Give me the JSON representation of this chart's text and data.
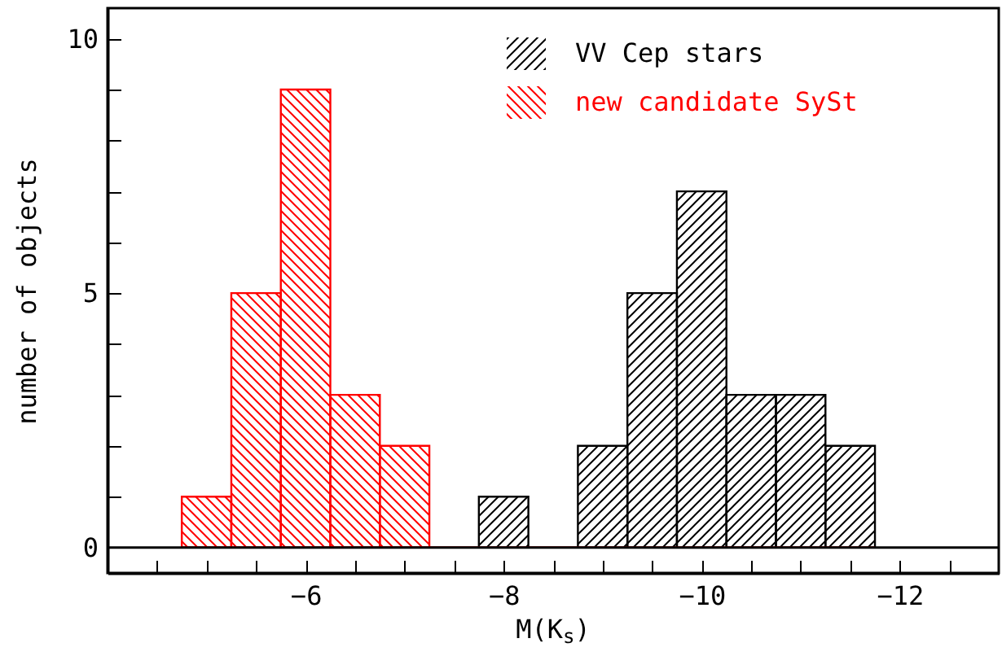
{
  "chart_data": {
    "type": "histogram",
    "xlabel": "M(K$_{s}$)",
    "ylabel": "number of objects",
    "bins": [
      -4.75,
      -5.25,
      -5.75,
      -6.25,
      -6.75,
      -7.25,
      -7.75,
      -8.25,
      -8.75,
      -9.25,
      -9.75,
      -10.25,
      -10.75,
      -11.25,
      -11.75
    ],
    "series": [
      {
        "name": "VV Cep stars",
        "color": "#000000",
        "values": [
          0,
          0,
          0,
          0,
          0,
          0,
          1,
          0,
          2,
          5,
          7,
          3,
          3,
          2
        ]
      },
      {
        "name": "new candidate SySt",
        "color": "#ff0000",
        "values": [
          1,
          5,
          9,
          3,
          2,
          0,
          0,
          0,
          0,
          0,
          0,
          0,
          0,
          0
        ]
      }
    ],
    "xlim": [
      -4,
      -13
    ],
    "ylim": [
      -0.5,
      10.6
    ],
    "xticks": [
      {
        "value": -4.5,
        "label": null
      },
      {
        "value": -5,
        "label": null
      },
      {
        "value": -5.5,
        "label": null
      },
      {
        "value": -6,
        "label": "−6"
      },
      {
        "value": -6.5,
        "label": null
      },
      {
        "value": -7,
        "label": null
      },
      {
        "value": -7.5,
        "label": null
      },
      {
        "value": -8,
        "label": "−8"
      },
      {
        "value": -8.5,
        "label": null
      },
      {
        "value": -9,
        "label": null
      },
      {
        "value": -9.5,
        "label": null
      },
      {
        "value": -10,
        "label": "−10"
      },
      {
        "value": -10.5,
        "label": null
      },
      {
        "value": -11,
        "label": null
      },
      {
        "value": -11.5,
        "label": null
      },
      {
        "value": -12,
        "label": "−12"
      },
      {
        "value": -12.5,
        "label": null
      }
    ],
    "yticks": [
      0,
      {
        "value": 1,
        "label": null
      },
      {
        "value": 2,
        "label": null
      },
      {
        "value": 3,
        "label": null
      },
      {
        "value": 4,
        "label": null
      },
      5,
      {
        "value": 6,
        "label": null
      },
      {
        "value": 7,
        "label": null
      },
      {
        "value": 8,
        "label": null
      },
      {
        "value": 9,
        "label": null
      },
      10
    ],
    "ref_lines": [
      {
        "axis": "y",
        "value": 0,
        "color": "#000000"
      }
    ],
    "legend": "top right",
    "grid": false
  }
}
